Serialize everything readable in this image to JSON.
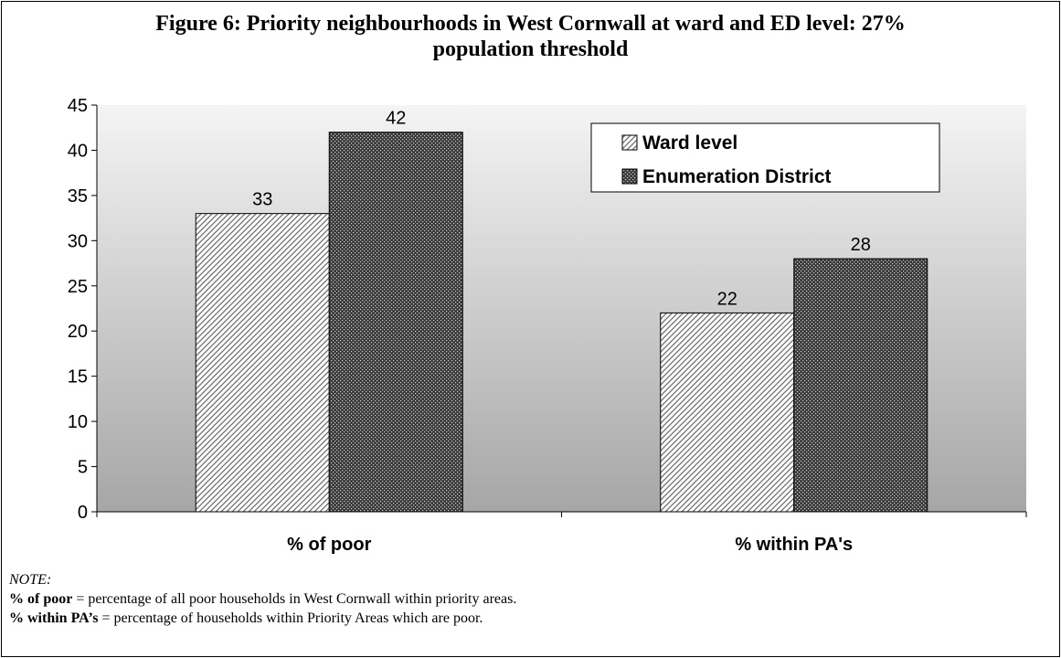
{
  "chart_data": {
    "type": "bar",
    "title_lines": [
      "Figure 6: Priority neighbourhoods in West Cornwall at ward and ED level: 27%",
      "population threshold"
    ],
    "categories": [
      "% of poor",
      "% within PA's"
    ],
    "series": [
      {
        "name": "Ward level",
        "values": [
          33,
          22
        ],
        "pattern": "diagonal-hatch"
      },
      {
        "name": "Enumeration District",
        "values": [
          42,
          28
        ],
        "pattern": "dark-dots"
      }
    ],
    "ylim": [
      0,
      45
    ],
    "y_ticks": [
      0,
      5,
      10,
      15,
      20,
      25,
      30,
      35,
      40,
      45
    ],
    "xlabel": "",
    "ylabel": "",
    "legend_position": "top-right",
    "grid": false,
    "data_labels": true,
    "plot_background": "gradient light-grey to grey"
  },
  "notes": {
    "heading": "NOTE:",
    "lines": [
      {
        "term": "% of poor",
        "definition": " = percentage of all poor households in West Cornwall within priority areas."
      },
      {
        "term": "% within PA’s",
        "definition": " = percentage of households within Priority Areas which are poor."
      }
    ]
  }
}
